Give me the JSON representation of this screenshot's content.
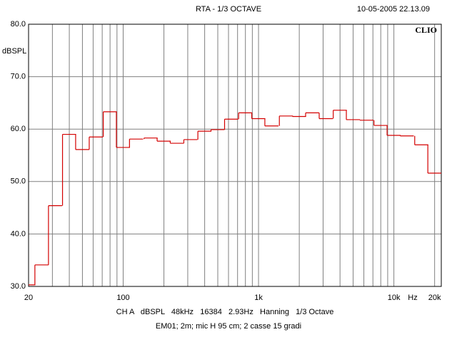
{
  "chart_data": {
    "type": "step",
    "title": "RTA - 1/3 OCTAVE",
    "timestamp": "10-05-2005 22.13.09",
    "brand": "CLIO",
    "y_label": "dBSPL",
    "x_unit": "Hz",
    "footer": [
      "CH A   dBSPL   48kHz   16384   2.93Hz   Hanning   1/3 Octave",
      "EM01; 2m; mic H 95 cm; 2 casse 15 gradi"
    ],
    "log_x": true,
    "grid": true,
    "x": [
      20,
      25,
      31.5,
      40,
      50,
      63,
      80,
      100,
      125,
      160,
      200,
      250,
      315,
      400,
      500,
      630,
      800,
      1000,
      1250,
      1600,
      2000,
      2500,
      3150,
      4000,
      5000,
      6300,
      8000,
      10000,
      12500,
      16000,
      20000
    ],
    "series": [
      {
        "color": "#d40000",
        "values": [
          30.3,
          34.1,
          45.4,
          59.0,
          56.1,
          58.5,
          63.3,
          56.5,
          58.1,
          58.3,
          57.7,
          57.3,
          58.0,
          59.6,
          59.9,
          61.9,
          63.1,
          62.0,
          60.6,
          62.5,
          62.4,
          63.1,
          62.0,
          63.6,
          61.8,
          61.7,
          60.7,
          58.8,
          58.7,
          57.0,
          51.6
        ]
      }
    ],
    "xlim": [
      20,
      22400
    ],
    "xticks": [
      {
        "value": 20,
        "label": "20"
      },
      {
        "value": 100,
        "label": "100"
      },
      {
        "value": 1000,
        "label": "1k"
      },
      {
        "value": 10000,
        "label": "10k"
      },
      {
        "value": 20000,
        "label": "20k"
      }
    ],
    "ylim": [
      30,
      80
    ],
    "yticks": [
      {
        "value": 30,
        "label": "30.0"
      },
      {
        "value": 40,
        "label": "40.0"
      },
      {
        "value": 50,
        "label": "50.0"
      },
      {
        "value": 60,
        "label": "60.0"
      },
      {
        "value": 70,
        "label": "70.0"
      },
      {
        "value": 80,
        "label": "80.0"
      }
    ]
  }
}
